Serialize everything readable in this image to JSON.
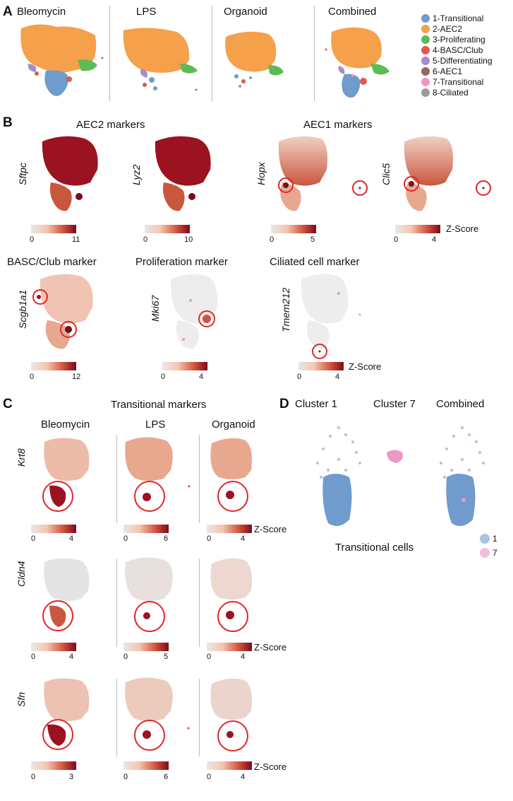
{
  "panelA": {
    "letter": "A",
    "titles": [
      "Bleomycin",
      "LPS",
      "Organoid",
      "Combined"
    ],
    "legend": [
      {
        "label": "1-Transitional",
        "color": "#6f9bcd"
      },
      {
        "label": "2-AEC2",
        "color": "#f5a04a"
      },
      {
        "label": "3-Proliferating",
        "color": "#5cbb55"
      },
      {
        "label": "4-BASC/Club",
        "color": "#e05a4f"
      },
      {
        "label": "5-Differentiating",
        "color": "#a88bc9"
      },
      {
        "label": "6-AEC1",
        "color": "#8f6b5d"
      },
      {
        "label": "7-Transitional",
        "color": "#ec98c7"
      },
      {
        "label": "8-Ciliated",
        "color": "#9a9a9a"
      }
    ]
  },
  "panelB": {
    "letter": "B",
    "row1_titles": {
      "aec2": "AEC2 markers",
      "aec1": "AEC1 markers"
    },
    "row2_titles": {
      "basc": "BASC/Club marker",
      "prolif": "Proliferation marker",
      "cilia": "Ciliated cell marker"
    },
    "genes": [
      "Sftpc",
      "Lyz2",
      "Hopx",
      "Clic5",
      "Scgb1a1",
      "Mki67",
      "Tmem212"
    ],
    "scales": [
      {
        "min": "0",
        "max": "11"
      },
      {
        "min": "0",
        "max": "10"
      },
      {
        "min": "0",
        "max": "5"
      },
      {
        "min": "0",
        "max": "4"
      },
      {
        "min": "0",
        "max": "12"
      },
      {
        "min": "0",
        "max": "4"
      },
      {
        "min": "0",
        "max": "4"
      }
    ],
    "zscore": "Z-Score"
  },
  "panelC": {
    "letter": "C",
    "title": "Transitional markers",
    "columns": [
      "Bleomycin",
      "LPS",
      "Organoid"
    ],
    "genes": [
      "Krt8",
      "Cldn4",
      "Sfn"
    ],
    "scales": [
      [
        "4",
        "6",
        "4"
      ],
      [
        "4",
        "5",
        "4"
      ],
      [
        "3",
        "6",
        "4"
      ]
    ],
    "zero": "0",
    "zscore": "Z-Score"
  },
  "panelD": {
    "letter": "D",
    "titles": [
      "Cluster 1",
      "Cluster 7",
      "Combined"
    ],
    "xlabel": "Transitional cells",
    "legend": [
      {
        "label": "1",
        "color": "#a9c3e3"
      },
      {
        "label": "7",
        "color": "#f1bfdc"
      }
    ]
  },
  "colors": {
    "aec2": "#f5a04a",
    "prolif": "#5cbb55",
    "trans": "#6f9bcd",
    "basc": "#e05a4f",
    "diff": "#a88bc9",
    "pink": "#ec98c7",
    "dark": "#8b0d1d",
    "circle": "#e0262a",
    "grey": "#dcdcdc"
  }
}
